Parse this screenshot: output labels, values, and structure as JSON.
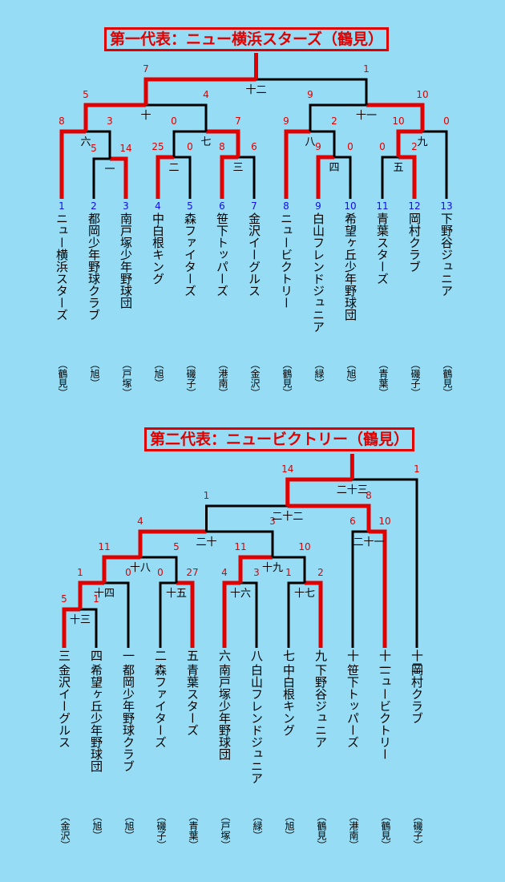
{
  "brackets": [
    {
      "title": "第一代表：ニュー横浜スターズ（鶴見）",
      "teams": [
        {
          "seed": "1",
          "name": "ニュー横浜スターズ",
          "area": "（鶴見）"
        },
        {
          "seed": "2",
          "name": "都岡少年野球クラブ",
          "area": "（旭）"
        },
        {
          "seed": "3",
          "name": "南戸塚少年野球団",
          "area": "（戸塚）"
        },
        {
          "seed": "4",
          "name": "中白根キング",
          "area": "（旭）"
        },
        {
          "seed": "5",
          "name": "森ファイターズ",
          "area": "（磯子）"
        },
        {
          "seed": "6",
          "name": "笹下トッパーズ",
          "area": "（港南）"
        },
        {
          "seed": "7",
          "name": "金沢イーグルス",
          "area": "（金沢）"
        },
        {
          "seed": "8",
          "name": "ニュービクトリー",
          "area": "（鶴見）"
        },
        {
          "seed": "9",
          "name": "白山フレンドジュニア",
          "area": "（緑）"
        },
        {
          "seed": "10",
          "name": "希望ヶ丘少年野球団",
          "area": "（旭）"
        },
        {
          "seed": "11",
          "name": "青葉スターズ",
          "area": "（青葉）"
        },
        {
          "seed": "12",
          "name": "岡村クラブ",
          "area": "（磯子）"
        },
        {
          "seed": "13",
          "name": "下野谷ジュニア",
          "area": "（鶴見）"
        }
      ],
      "matches": [
        {
          "no": "一",
          "s1": "5",
          "s2": "14"
        },
        {
          "no": "二",
          "s1": "25",
          "s2": "0"
        },
        {
          "no": "三",
          "s1": "8",
          "s2": "6"
        },
        {
          "no": "四",
          "s1": "9",
          "s2": "0"
        },
        {
          "no": "五",
          "s1": "0",
          "s2": "2"
        },
        {
          "no": "六",
          "s1": "8",
          "s2": "3"
        },
        {
          "no": "七",
          "s1": "0",
          "s2": "7"
        },
        {
          "no": "八",
          "s1": "9",
          "s2": "2"
        },
        {
          "no": "九",
          "s1": "10",
          "s2": "0"
        },
        {
          "no": "十",
          "s1": "5",
          "s2": "4"
        },
        {
          "no": "十一",
          "s1": "9",
          "s2": "10"
        },
        {
          "no": "十二",
          "s1": "7",
          "s2": "1"
        }
      ]
    },
    {
      "title": "第二代表：ニュービクトリー（鶴見）",
      "teams": [
        {
          "seed": "三",
          "name": "金沢イーグルス",
          "area": "（金沢）"
        },
        {
          "seed": "四",
          "name": "希望ヶ丘少年野球団",
          "area": "（旭）"
        },
        {
          "seed": "一",
          "name": "都岡少年野球クラブ",
          "area": "（旭）"
        },
        {
          "seed": "二",
          "name": "森ファイターズ",
          "area": "（磯子）"
        },
        {
          "seed": "五",
          "name": "青葉スターズ",
          "area": "（青葉）"
        },
        {
          "seed": "六",
          "name": "南戸塚少年野球団",
          "area": "（戸塚）"
        },
        {
          "seed": "八",
          "name": "白山フレンドジュニア",
          "area": "（緑）"
        },
        {
          "seed": "七",
          "name": "中白根キング",
          "area": "（旭）"
        },
        {
          "seed": "九",
          "name": "下野谷ジュニア",
          "area": "（鶴見）"
        },
        {
          "seed": "十",
          "name": "笹下トッパーズ",
          "area": "（港南）"
        },
        {
          "seed": "十一",
          "name": "ニュービクトリー",
          "area": "（鶴見）"
        },
        {
          "seed": "十二",
          "name": "岡村クラブ",
          "area": "（磯子）"
        }
      ],
      "matches": [
        {
          "no": "十三",
          "s1": "5",
          "s2": "1"
        },
        {
          "no": "十四",
          "s1": "1",
          "s2": "0"
        },
        {
          "no": "十五",
          "s1": "0",
          "s2": "27"
        },
        {
          "no": "十六",
          "s1": "4",
          "s2": "3"
        },
        {
          "no": "十七",
          "s1": "1",
          "s2": "2"
        },
        {
          "no": "十八",
          "s1": "11",
          "s2": "5"
        },
        {
          "no": "十九",
          "s1": "11",
          "s2": "10"
        },
        {
          "no": "二十",
          "s1": "4",
          "s2": "3"
        },
        {
          "no": "二十一",
          "s1": "6",
          "s2": "10"
        },
        {
          "no": "二十二",
          "s1": "1",
          "s2": "8"
        },
        {
          "no": "二十三",
          "s1": "14",
          "s2": "1"
        }
      ]
    }
  ],
  "colors": {
    "background": "#96dcf4",
    "winner": "#e00000",
    "loser": "#000000",
    "seed": "#1010e0"
  }
}
